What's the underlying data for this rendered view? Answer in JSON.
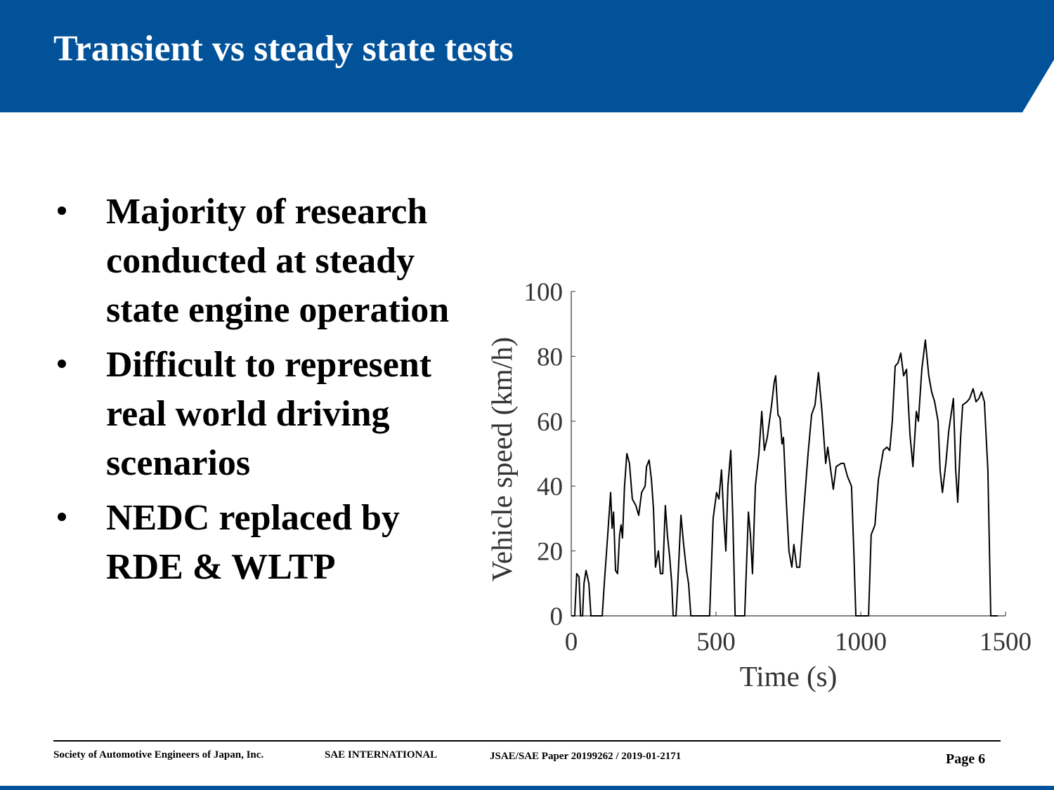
{
  "header": {
    "title": "Transient vs steady state tests"
  },
  "bullets": [
    [
      "Majority of research",
      "conducted at steady",
      "state engine operation"
    ],
    [
      "Difficult to represent",
      "real world driving",
      "scenarios"
    ],
    [
      "NEDC replaced by",
      "RDE & WLTP"
    ]
  ],
  "chart_data": {
    "type": "line",
    "x_label": "Time (s)",
    "y_label": "Vehicle speed (km/h)",
    "xlim": [
      0,
      1500
    ],
    "xticks": [
      0,
      500,
      1000,
      1500
    ],
    "ylim": [
      0,
      100
    ],
    "yticks": [
      0,
      20,
      40,
      60,
      80,
      100
    ],
    "series": [
      {
        "color": "#000000",
        "x": [
          0,
          12,
          19,
          27,
          32,
          39,
          44,
          51,
          61,
          68,
          107,
          114,
          126,
          136,
          141,
          146,
          153,
          160,
          167,
          172,
          177,
          184,
          192,
          201,
          211,
          223,
          233,
          243,
          255,
          260,
          269,
          277,
          284,
          291,
          301,
          308,
          316,
          325,
          332,
          340,
          347,
          352,
          362,
          369,
          379,
          388,
          398,
          405,
          413,
          478,
          490,
          502,
          510,
          519,
          527,
          534,
          541,
          551,
          558,
          566,
          599,
          612,
          619,
          626,
          636,
          648,
          658,
          667,
          677,
          692,
          701,
          706,
          714,
          721,
          728,
          733,
          743,
          752,
          762,
          769,
          779,
          789,
          801,
          818,
          830,
          842,
          854,
          866,
          879,
          886,
          896,
          905,
          915,
          932,
          942,
          954,
          968,
          976,
          983,
          1027,
          1036,
          1049,
          1061,
          1078,
          1090,
          1100,
          1109,
          1119,
          1129,
          1138,
          1148,
          1158,
          1170,
          1180,
          1192,
          1199,
          1211,
          1223,
          1235,
          1245,
          1255,
          1267,
          1274,
          1282,
          1294,
          1304,
          1320,
          1328,
          1335,
          1345,
          1352,
          1367,
          1376,
          1388,
          1398,
          1408,
          1417,
          1427,
          1439,
          1449,
          1473
        ],
        "values": [
          0,
          0,
          13,
          12,
          0,
          0,
          10,
          14,
          10,
          0,
          0,
          10,
          25,
          38,
          27,
          32,
          14,
          13,
          25,
          28,
          24,
          40,
          50,
          47,
          36,
          34,
          31,
          38,
          40,
          46,
          48,
          42,
          33,
          15,
          20,
          13,
          13,
          34,
          25,
          18,
          10,
          0,
          0,
          12,
          31,
          22,
          14,
          10,
          0,
          0,
          30,
          38,
          36,
          45,
          30,
          20,
          40,
          51,
          30,
          0,
          0,
          32,
          25,
          13,
          40,
          50,
          63,
          51,
          55,
          65,
          72,
          74,
          62,
          61,
          53,
          55,
          35,
          20,
          15,
          22,
          15,
          15,
          30,
          50,
          62,
          65,
          75,
          63,
          47,
          52,
          45,
          39,
          46,
          47,
          47,
          43,
          40,
          20,
          0,
          0,
          25,
          28,
          42,
          51,
          52,
          51,
          60,
          77,
          78,
          81,
          74,
          76,
          56,
          46,
          63,
          60,
          76,
          85,
          74,
          69,
          66,
          60,
          45,
          38,
          47,
          57,
          67,
          45,
          35,
          55,
          65,
          66,
          67,
          70,
          66,
          67,
          69,
          66,
          45,
          0,
          0
        ]
      }
    ]
  },
  "footer": {
    "left": "Society of Automotive Engineers of Japan, Inc.",
    "middle": "SAE INTERNATIONAL",
    "paper": "JSAE/SAE  Paper 20199262 / 2019-01-2171",
    "page": "Page 6"
  }
}
